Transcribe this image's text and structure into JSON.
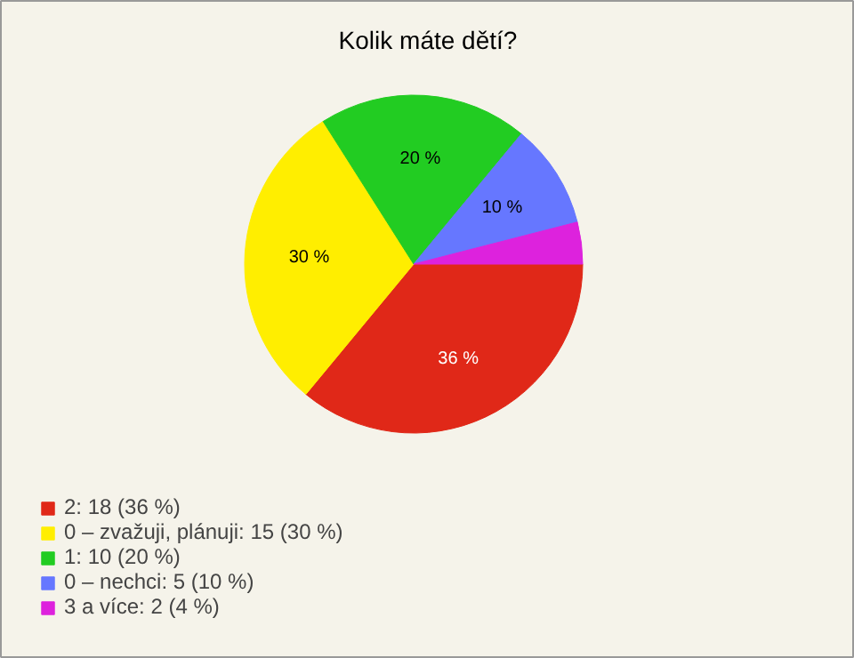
{
  "chart_data": {
    "type": "pie",
    "title": "Kolik máte dětí?",
    "categories": [
      "2: 18 (36 %)",
      "0 – zvažuji, plánuji: 15 (30 %)",
      "1: 10 (20 %)",
      "0 – nechci: 5 (10 %)",
      "3 a více: 2 (4 %)"
    ],
    "values": [
      36,
      30,
      20,
      10,
      4
    ],
    "colors": [
      "#e02818",
      "#ffee00",
      "#22cc22",
      "#6677ff",
      "#dd22dd"
    ],
    "value_labels": [
      "36 %",
      "30 %",
      "20 %",
      "10 %",
      null
    ],
    "legend": "bottom left"
  }
}
